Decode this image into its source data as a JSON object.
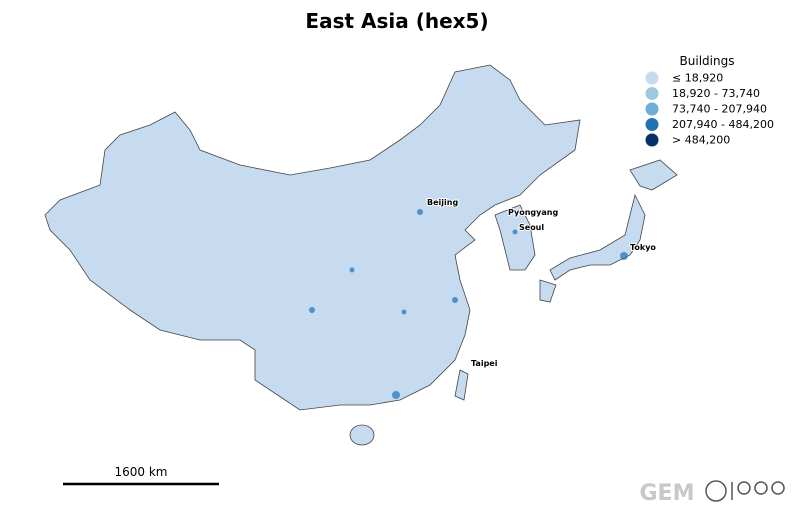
{
  "title": "East Asia (hex5)",
  "legend": {
    "title": "Buildings",
    "items": [
      {
        "label": "≤ 18,920",
        "color": "#c6dbef"
      },
      {
        "label": "18,920 - 73,740",
        "color": "#9ecae1"
      },
      {
        "label": "73,740 - 207,940",
        "color": "#6baed6"
      },
      {
        "label": "207,940 - 484,200",
        "color": "#2171b5"
      },
      {
        "label": "> 484,200",
        "color": "#08306b"
      }
    ]
  },
  "cities": [
    "Beijing",
    "Pyongyang",
    "Seoul",
    "Tokyo",
    "Taipei"
  ],
  "scale_bar": "1600 km",
  "logo": "GEM"
}
